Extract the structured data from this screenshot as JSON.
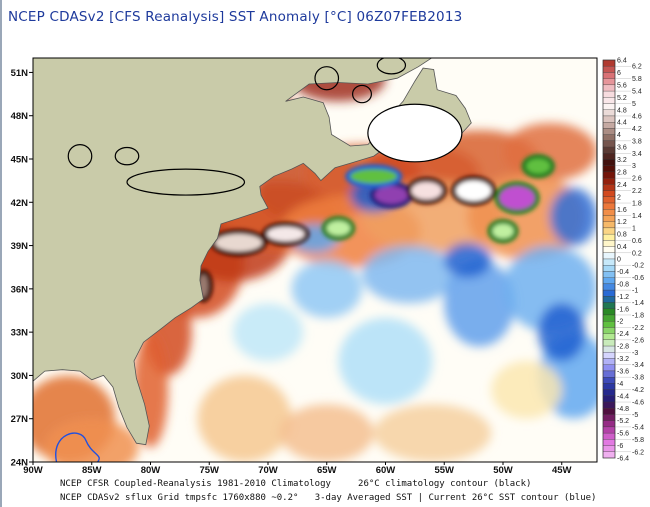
{
  "title": "NCEP CDASv2 [CFS Reanalysis] SST Anomaly [°C] 06Z07FEB2013",
  "map": {
    "lon_range": [
      -90,
      -42
    ],
    "lat_range": [
      24,
      52
    ],
    "lon_ticks": [
      "90W",
      "85W",
      "80W",
      "75W",
      "70W",
      "65W",
      "60W",
      "55W",
      "50W",
      "45W"
    ],
    "lat_ticks": [
      "24N",
      "27N",
      "30N",
      "33N",
      "36N",
      "39N",
      "42N",
      "45N",
      "48N",
      "51N"
    ],
    "land_color": "#c9cba9",
    "climatology_contour_color": "#000000",
    "current_contour_color": "#2050e0"
  },
  "colorbar": {
    "labels": [
      "6.4",
      "6.2",
      "6",
      "5.8",
      "5.6",
      "5.4",
      "5.2",
      "5",
      "4.8",
      "4.6",
      "4.4",
      "4.2",
      "4",
      "3.8",
      "3.6",
      "3.4",
      "3.2",
      "3",
      "2.8",
      "2.6",
      "2.4",
      "2.2",
      "2",
      "1.8",
      "1.6",
      "1.4",
      "1.2",
      "1",
      "0.8",
      "0.6",
      "0.4",
      "0.2",
      "0",
      "-0.2",
      "-0.4",
      "-0.6",
      "-0.8",
      "-1",
      "-1.2",
      "-1.4",
      "-1.6",
      "-1.8",
      "-2",
      "-2.2",
      "-2.4",
      "-2.6",
      "-2.8",
      "-3",
      "-3.2",
      "-3.4",
      "-3.6",
      "-3.8",
      "-4",
      "-4.2",
      "-4.4",
      "-4.6",
      "-4.8",
      "-5",
      "-5.2",
      "-5.4",
      "-5.6",
      "-5.8",
      "-6",
      "-6.2",
      "-6.4"
    ],
    "color_stops": [
      "#b03a30",
      "#e07a80",
      "#f6d8dc",
      "#fbf3f2",
      "#d6bcb6",
      "#9a7a70",
      "#5a3a34",
      "#3e0a06",
      "#8a1a0a",
      "#d24a20",
      "#f08040",
      "#f4b060",
      "#fff0a0",
      "#ffffff",
      "#b0e0f8",
      "#60a8f0",
      "#2060d0",
      "#208020",
      "#60c040",
      "#c0f0a0",
      "#e0e0ff",
      "#9090f0",
      "#3040b0",
      "#202080",
      "#501040",
      "#a03090",
      "#e070e0",
      "#f0b0f0"
    ]
  },
  "footer": {
    "line1_left": "NCEP CFSR Coupled-Reanalysis 1981-2010 Climatology",
    "line1_right": "26°C climatology contour (black)",
    "line2_left": "NCEP CDASv2 sflux Grid tmpsfc 1760x880 ~0.2°",
    "line2_right": "3-day Averaged SST | Current 26°C SST contour (blue)"
  }
}
